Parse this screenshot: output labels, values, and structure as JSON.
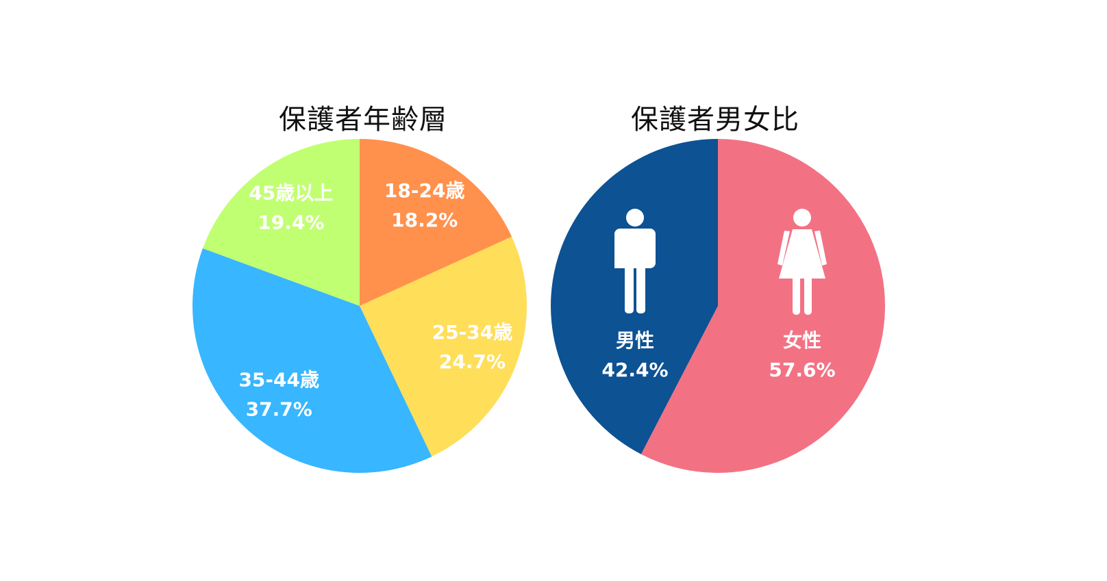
{
  "chart_data": [
    {
      "type": "pie",
      "title": "保護者年齢層",
      "slices": [
        {
          "label": "18-24歳",
          "value": 18.2,
          "value_text": "18.2%",
          "color": "#FF914D"
        },
        {
          "label": "25-34歳",
          "value": 24.7,
          "value_text": "24.7%",
          "color": "#FFDE59"
        },
        {
          "label": "35-44歳",
          "value": 37.7,
          "value_text": "37.7%",
          "color": "#38B6FF"
        },
        {
          "label": "45歳以上",
          "value": 19.4,
          "value_text": "19.4%",
          "color": "#C1FF72"
        }
      ]
    },
    {
      "type": "pie",
      "title": "保護者男女比",
      "slices": [
        {
          "label": "女性",
          "value": 57.6,
          "value_text": "57.6%",
          "color": "#F27284",
          "icon": "female-icon"
        },
        {
          "label": "男性",
          "value": 42.4,
          "value_text": "42.4%",
          "color": "#0D5293",
          "icon": "male-icon"
        }
      ]
    }
  ]
}
